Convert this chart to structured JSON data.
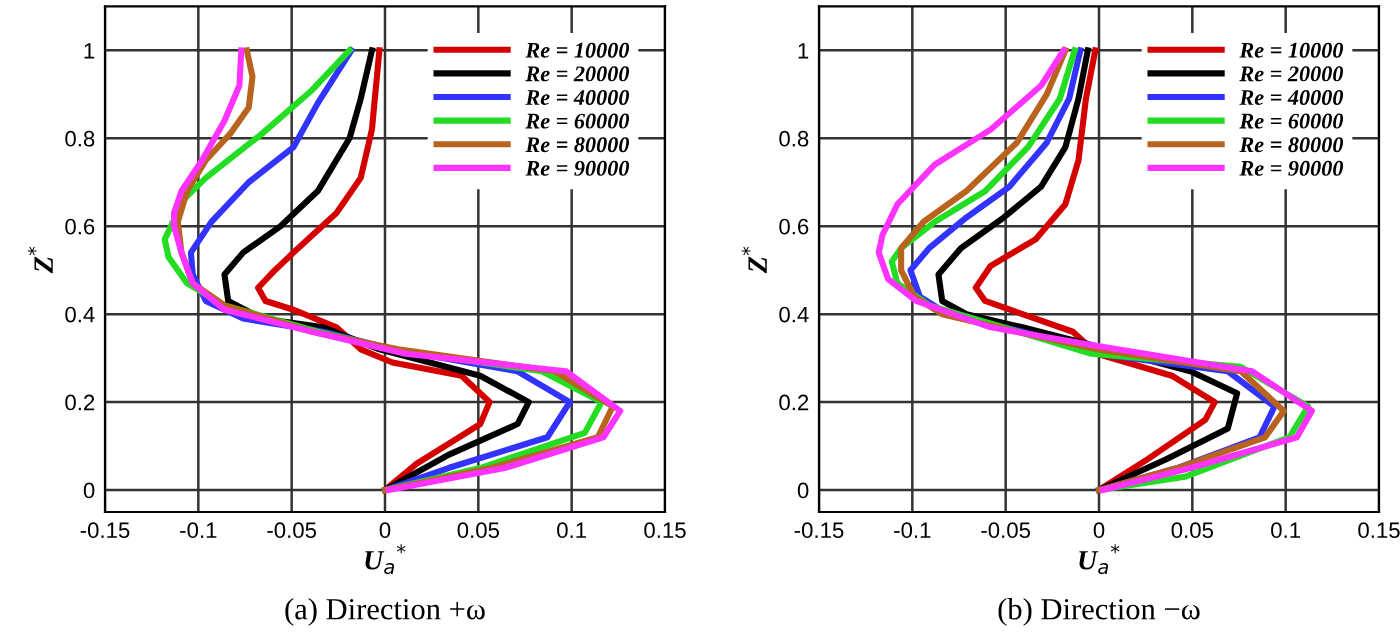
{
  "chart_data": [
    {
      "type": "line",
      "title": "(a) Direction +ω",
      "xlabel": "U$_{a}$$^{*}$",
      "ylabel": "Z$^{*}$",
      "xlim": [
        -0.15,
        0.15
      ],
      "ylim": [
        -0.05,
        1.1
      ],
      "xticks": [
        -0.15,
        -0.1,
        -0.05,
        0,
        0.05,
        0.1,
        0.15
      ],
      "yticks": [
        0,
        0.2,
        0.4,
        0.6,
        0.8,
        1
      ],
      "grid": true,
      "legend": "top right",
      "marker": "none",
      "line_style": "solid",
      "series": [
        {
          "name": "Re = 10000",
          "color": "#d40000",
          "x": [
            -0.003,
            -0.007,
            -0.013,
            -0.026,
            -0.049,
            -0.059,
            -0.068,
            -0.064,
            -0.049,
            -0.026,
            -0.013,
            0.004,
            0.041,
            0.056,
            0.051,
            0.017,
            0
          ],
          "values": [
            1,
            0.82,
            0.71,
            0.63,
            0.54,
            0.5,
            0.46,
            0.43,
            0.41,
            0.37,
            0.32,
            0.29,
            0.26,
            0.2,
            0.15,
            0.06,
            0
          ]
        },
        {
          "name": "Re = 20000",
          "color": "#000000",
          "x": [
            -0.007,
            -0.013,
            -0.019,
            -0.036,
            -0.056,
            -0.076,
            -0.086,
            -0.084,
            -0.066,
            -0.033,
            -0.003,
            0.051,
            0.077,
            0.071,
            0.034,
            0
          ],
          "values": [
            1,
            0.89,
            0.8,
            0.68,
            0.6,
            0.54,
            0.49,
            0.43,
            0.39,
            0.37,
            0.32,
            0.26,
            0.2,
            0.15,
            0.08,
            0
          ]
        },
        {
          "name": "Re = 40000",
          "color": "#3333ff",
          "x": [
            -0.018,
            -0.036,
            -0.049,
            -0.073,
            -0.093,
            -0.104,
            -0.103,
            -0.096,
            -0.076,
            -0.033,
            0.004,
            0.071,
            0.099,
            0.087,
            0.034,
            0
          ],
          "values": [
            1,
            0.88,
            0.78,
            0.7,
            0.61,
            0.54,
            0.49,
            0.43,
            0.39,
            0.36,
            0.32,
            0.27,
            0.2,
            0.12,
            0.05,
            0
          ]
        },
        {
          "name": "Re = 60000",
          "color": "#22dd22",
          "x": [
            -0.019,
            -0.039,
            -0.066,
            -0.096,
            -0.108,
            -0.118,
            -0.116,
            -0.106,
            -0.086,
            -0.036,
            0.004,
            0.084,
            0.116,
            0.107,
            0.051,
            0
          ],
          "values": [
            1,
            0.91,
            0.81,
            0.71,
            0.66,
            0.57,
            0.53,
            0.47,
            0.42,
            0.36,
            0.32,
            0.27,
            0.2,
            0.13,
            0.05,
            0
          ]
        },
        {
          "name": "Re = 80000",
          "color": "#b8641e",
          "x": [
            -0.074,
            -0.071,
            -0.073,
            -0.083,
            -0.096,
            -0.106,
            -0.111,
            -0.109,
            -0.103,
            -0.086,
            -0.039,
            0.007,
            0.091,
            0.122,
            0.114,
            0.057,
            0
          ],
          "values": [
            1,
            0.94,
            0.87,
            0.81,
            0.75,
            0.68,
            0.61,
            0.54,
            0.47,
            0.42,
            0.36,
            0.32,
            0.27,
            0.19,
            0.12,
            0.05,
            0
          ]
        },
        {
          "name": "Re = 90000",
          "color": "#ff33ff",
          "x": [
            -0.077,
            -0.078,
            -0.086,
            -0.098,
            -0.109,
            -0.113,
            -0.113,
            -0.109,
            -0.103,
            -0.086,
            -0.039,
            0.011,
            0.097,
            0.126,
            0.117,
            0.064,
            0.002
          ],
          "values": [
            1,
            0.92,
            0.84,
            0.75,
            0.68,
            0.63,
            0.6,
            0.54,
            0.47,
            0.41,
            0.36,
            0.31,
            0.27,
            0.18,
            0.12,
            0.05,
            0
          ]
        }
      ]
    },
    {
      "type": "line",
      "title": "(b) Direction −ω",
      "xlabel": "U$_{a}$$^{*}$",
      "ylabel": "Z$^{*}$",
      "xlim": [
        -0.15,
        0.15
      ],
      "ylim": [
        -0.05,
        1.1
      ],
      "xticks": [
        -0.15,
        -0.1,
        -0.05,
        0,
        0.05,
        0.1,
        0.15
      ],
      "yticks": [
        0,
        0.2,
        0.4,
        0.6,
        0.8,
        1
      ],
      "grid": true,
      "legend": "top right",
      "marker": "none",
      "line_style": "solid",
      "series": [
        {
          "name": "Re = 10000",
          "color": "#d40000",
          "x": [
            -0.002,
            -0.007,
            -0.011,
            -0.018,
            -0.034,
            -0.058,
            -0.066,
            -0.061,
            -0.041,
            -0.014,
            -0.001,
            0.039,
            0.062,
            0.057,
            0.026,
            0
          ],
          "values": [
            1,
            0.89,
            0.75,
            0.65,
            0.57,
            0.51,
            0.46,
            0.43,
            0.4,
            0.36,
            0.31,
            0.26,
            0.2,
            0.16,
            0.07,
            0
          ]
        },
        {
          "name": "Re = 20000",
          "color": "#000000",
          "x": [
            -0.006,
            -0.011,
            -0.018,
            -0.031,
            -0.051,
            -0.074,
            -0.086,
            -0.084,
            -0.071,
            -0.041,
            -0.004,
            0.049,
            0.074,
            0.069,
            0.036,
            0
          ],
          "values": [
            1,
            0.89,
            0.78,
            0.69,
            0.62,
            0.55,
            0.49,
            0.43,
            0.4,
            0.37,
            0.33,
            0.27,
            0.22,
            0.14,
            0.07,
            0
          ]
        },
        {
          "name": "Re = 40000",
          "color": "#3333ff",
          "x": [
            -0.01,
            -0.016,
            -0.028,
            -0.048,
            -0.071,
            -0.091,
            -0.101,
            -0.096,
            -0.081,
            -0.041,
            -0.001,
            0.069,
            0.094,
            0.086,
            0.042,
            0
          ],
          "values": [
            1,
            0.89,
            0.79,
            0.69,
            0.62,
            0.55,
            0.5,
            0.44,
            0.4,
            0.36,
            0.31,
            0.27,
            0.19,
            0.12,
            0.05,
            0
          ]
        },
        {
          "name": "Re = 60000",
          "color": "#22dd22",
          "x": [
            -0.013,
            -0.021,
            -0.038,
            -0.061,
            -0.088,
            -0.106,
            -0.111,
            -0.108,
            -0.091,
            -0.051,
            -0.004,
            0.076,
            0.112,
            0.102,
            0.046,
            0
          ],
          "values": [
            1,
            0.89,
            0.78,
            0.68,
            0.61,
            0.55,
            0.52,
            0.47,
            0.42,
            0.37,
            0.31,
            0.28,
            0.19,
            0.12,
            0.03,
            0
          ]
        },
        {
          "name": "Re = 80000",
          "color": "#b8641e",
          "x": [
            -0.018,
            -0.028,
            -0.044,
            -0.071,
            -0.094,
            -0.106,
            -0.106,
            -0.099,
            -0.084,
            -0.044,
            -0.001,
            0.076,
            0.099,
            0.089,
            0.042,
            0
          ],
          "values": [
            1,
            0.9,
            0.79,
            0.68,
            0.61,
            0.55,
            0.5,
            0.44,
            0.4,
            0.36,
            0.32,
            0.27,
            0.18,
            0.12,
            0.05,
            0
          ]
        },
        {
          "name": "Re = 90000",
          "color": "#ff33ff",
          "x": [
            -0.019,
            -0.031,
            -0.058,
            -0.088,
            -0.108,
            -0.116,
            -0.118,
            -0.113,
            -0.098,
            -0.058,
            -0.004,
            0.082,
            0.114,
            0.106,
            0.049,
            0.002
          ],
          "values": [
            1,
            0.92,
            0.82,
            0.74,
            0.65,
            0.58,
            0.54,
            0.48,
            0.43,
            0.37,
            0.33,
            0.27,
            0.18,
            0.12,
            0.05,
            0
          ]
        }
      ]
    }
  ]
}
